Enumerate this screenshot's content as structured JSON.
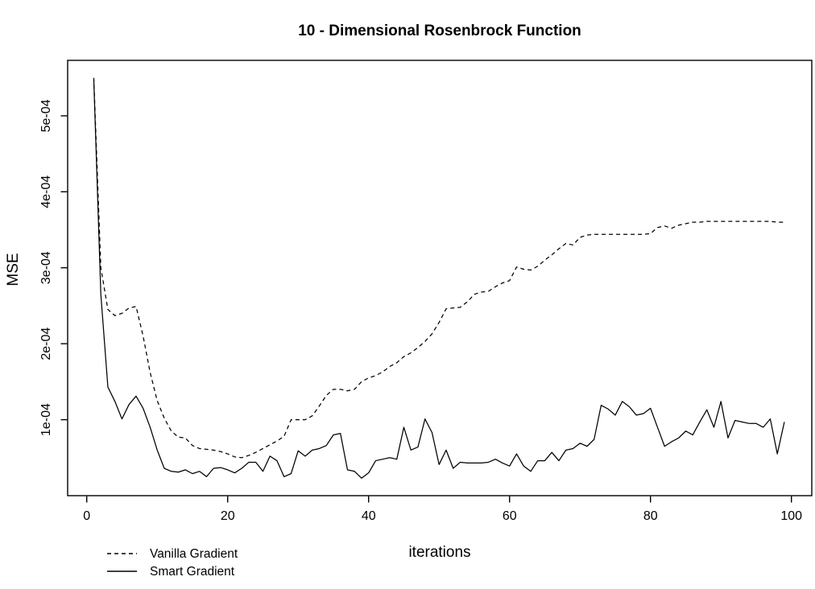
{
  "chart_data": {
    "type": "line",
    "title": "10 - Dimensional Rosenbrock Function",
    "xlabel": "iterations",
    "ylabel": "MSE",
    "grid": false,
    "legend_position": "bottom-left-outside",
    "line_color": "#000000",
    "xlim": [
      -2.71,
      102.89
    ],
    "ylim": [
      0,
      0.000573
    ],
    "x_ticks": [
      {
        "label": "0",
        "value": 0
      },
      {
        "label": "20",
        "value": 20
      },
      {
        "label": "40",
        "value": 40
      },
      {
        "label": "60",
        "value": 60
      },
      {
        "label": "80",
        "value": 80
      },
      {
        "label": "100",
        "value": 100
      }
    ],
    "y_ticks": [
      {
        "label": "1e-04",
        "value": 0.0001
      },
      {
        "label": "2e-04",
        "value": 0.0002
      },
      {
        "label": "3e-04",
        "value": 0.0003
      },
      {
        "label": "4e-04",
        "value": 0.0004
      },
      {
        "label": "5e-04",
        "value": 0.0005
      }
    ],
    "x_start": 1,
    "x_step": 1,
    "series": [
      {
        "name": "Vanilla Gradient",
        "line_style": "dashed",
        "color": "#000000",
        "values": [
          0.00055,
          0.0003,
          0.000245,
          0.000237,
          0.00024,
          0.000247,
          0.000249,
          0.00021,
          0.000162,
          0.000125,
          0.000102,
          8.5e-05,
          7.7e-05,
          7.6e-05,
          6.6e-05,
          6.2e-05,
          6.1e-05,
          6e-05,
          5.8e-05,
          5.5e-05,
          5.1e-05,
          5e-05,
          5.3e-05,
          5.7e-05,
          6.2e-05,
          6.7e-05,
          7.2e-05,
          7.8e-05,
          0.0001,
          0.0001,
          0.0001,
          0.000105,
          0.000118,
          0.000132,
          0.00014,
          0.00014,
          0.000138,
          0.00014,
          0.00015,
          0.000155,
          0.000158,
          0.000163,
          0.00017,
          0.000175,
          0.000183,
          0.000188,
          0.000195,
          0.000203,
          0.000213,
          0.000228,
          0.000246,
          0.000247,
          0.000248,
          0.000255,
          0.000265,
          0.000268,
          0.000269,
          0.000275,
          0.00028,
          0.000283,
          0.000301,
          0.000298,
          0.000297,
          0.000302,
          0.00031,
          0.000317,
          0.000325,
          0.000332,
          0.00033,
          0.00034,
          0.000343,
          0.000344,
          0.000344,
          0.000344,
          0.000344,
          0.000344,
          0.000344,
          0.000344,
          0.000344,
          0.000345,
          0.000353,
          0.000355,
          0.000352,
          0.000356,
          0.000358,
          0.00036,
          0.00036,
          0.000361,
          0.000361,
          0.000361,
          0.000361,
          0.000361,
          0.000361,
          0.000361,
          0.000361,
          0.000361,
          0.000361,
          0.00036,
          0.00036
        ]
      },
      {
        "name": "Smart Gradient",
        "line_style": "solid",
        "color": "#000000",
        "values": [
          0.000547,
          0.000265,
          0.000143,
          0.000124,
          0.000101,
          0.00012,
          0.000131,
          0.000115,
          9e-05,
          6e-05,
          3.6e-05,
          3.2e-05,
          3.1e-05,
          3.4e-05,
          2.9e-05,
          3.2e-05,
          2.5e-05,
          3.6e-05,
          3.7e-05,
          3.4e-05,
          3e-05,
          3.6e-05,
          4.4e-05,
          4.4e-05,
          3.2e-05,
          5.2e-05,
          4.6e-05,
          2.5e-05,
          2.9e-05,
          5.9e-05,
          5.2e-05,
          6e-05,
          6.2e-05,
          6.6e-05,
          8e-05,
          8.2e-05,
          3.4e-05,
          3.2e-05,
          2.3e-05,
          3e-05,
          4.6e-05,
          4.8e-05,
          5e-05,
          4.8e-05,
          9e-05,
          6e-05,
          6.4e-05,
          0.000101,
          8.3e-05,
          4.1e-05,
          6e-05,
          3.6e-05,
          4.4e-05,
          4.3e-05,
          4.3e-05,
          4.3e-05,
          4.4e-05,
          4.8e-05,
          4.3e-05,
          3.9e-05,
          5.5e-05,
          3.9e-05,
          3.2e-05,
          4.6e-05,
          4.6e-05,
          5.7e-05,
          4.6e-05,
          6e-05,
          6.2e-05,
          6.9e-05,
          6.5e-05,
          7.4e-05,
          0.000119,
          0.000114,
          0.000106,
          0.000124,
          0.000117,
          0.000106,
          0.000108,
          0.000115,
          9e-05,
          6.5e-05,
          7.1e-05,
          7.6e-05,
          8.5e-05,
          8e-05,
          9.7e-05,
          0.000113,
          9e-05,
          0.000124,
          7.6e-05,
          9.9e-05,
          9.7e-05,
          9.5e-05,
          9.5e-05,
          9e-05,
          0.000101,
          5.5e-05,
          9.7e-05
        ]
      }
    ]
  }
}
